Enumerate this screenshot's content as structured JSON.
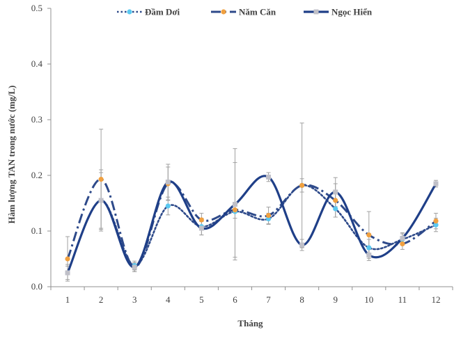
{
  "chart_data": {
    "type": "line",
    "xlabel": "Tháng",
    "ylabel": "Hàm lượng TAN trong nước (mg/L)",
    "x": [
      1,
      2,
      3,
      4,
      5,
      6,
      7,
      8,
      9,
      10,
      11,
      12
    ],
    "x_tick_labels": [
      "1",
      "2",
      "3",
      "4",
      "5",
      "6",
      "7",
      "8",
      "9",
      "10",
      "11",
      "12"
    ],
    "xlim": [
      0.5,
      12.5
    ],
    "ylim": [
      0,
      0.5
    ],
    "y_ticks": [
      0,
      0.1,
      0.2,
      0.3,
      0.4,
      0.5
    ],
    "y_tick_labels": [
      "0.0",
      "0.1",
      "0.2",
      "0.3",
      "0.4",
      "0.5"
    ],
    "grid": false,
    "legend_position": "top-center",
    "series": [
      {
        "name": "Đầm Dơi",
        "line_style": "dotted",
        "line_color": "#2e4a8a",
        "marker_color": "#5bc8f0",
        "values": [
          0.025,
          0.155,
          0.038,
          0.145,
          0.108,
          0.135,
          0.122,
          0.182,
          0.14,
          0.07,
          0.085,
          0.111
        ],
        "errors": [
          0.015,
          0.05,
          0.008,
          0.016,
          0.015,
          0.012,
          0.01,
          0.012,
          0.015,
          0.015,
          0.01,
          0.012
        ]
      },
      {
        "name": "Năm Căn",
        "line_style": "dash-dot",
        "line_color": "#2e4a8a",
        "marker_color": "#f0a040",
        "values": [
          0.05,
          0.193,
          0.035,
          0.185,
          0.12,
          0.138,
          0.128,
          0.182,
          0.155,
          0.093,
          0.077,
          0.118
        ],
        "errors": [
          0.04,
          0.09,
          0.008,
          0.03,
          0.012,
          0.085,
          0.015,
          0.112,
          0.03,
          0.042,
          0.01,
          0.014
        ]
      },
      {
        "name": "Ngọc Hiển",
        "line_style": "solid",
        "line_color": "#1f3f88",
        "marker_color": "#c0c0c8",
        "values": [
          0.025,
          0.155,
          0.035,
          0.188,
          0.105,
          0.148,
          0.197,
          0.075,
          0.17,
          0.057,
          0.087,
          0.185
        ],
        "errors": [
          0.012,
          0.055,
          0.008,
          0.032,
          0.012,
          0.1,
          0.008,
          0.01,
          0.026,
          0.01,
          0.01,
          0.006
        ]
      }
    ]
  }
}
